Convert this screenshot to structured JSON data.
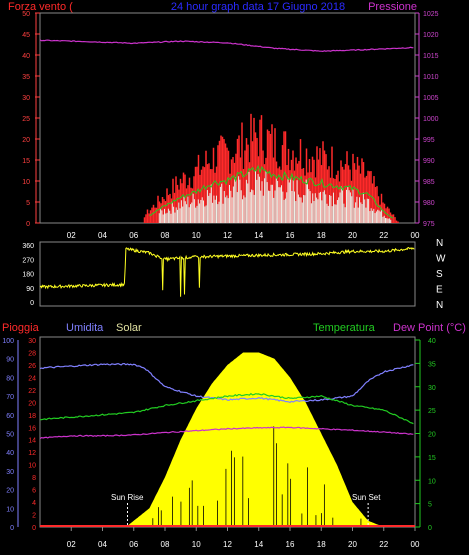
{
  "colors": {
    "background": "#000000",
    "wind_text": "#ff2a2a",
    "title_text": "#2b2bff",
    "pressure": "#cc33cc",
    "wind_axis": "#ff4040",
    "pressure_axis": "#cc44cc",
    "wind_dir": "#ffff22",
    "humidity": "#8080ff",
    "solar": "#ffff00",
    "temperature": "#22cc22",
    "dew_point": "#cc33cc",
    "rain": "#ff2a2a",
    "white": "#ffffff",
    "grid": "#2a7a2a"
  },
  "top": {
    "label_left": "Forza vento (",
    "title": "24 hour graph data  17 Giugno 2018",
    "label_right": "Pressione",
    "wind_ticks": [
      "0",
      "5",
      "10",
      "15",
      "20",
      "25",
      "30",
      "35",
      "40",
      "45",
      "50"
    ],
    "pressure_ticks": [
      "975",
      "980",
      "985",
      "990",
      "995",
      "1000",
      "1005",
      "1010",
      "1015",
      "1020",
      "1025"
    ]
  },
  "mid": {
    "dir_ticks": [
      "0",
      "90",
      "180",
      "270",
      "360"
    ],
    "compass": [
      "N",
      "W",
      "S",
      "E",
      "N"
    ]
  },
  "bottom": {
    "label_rain": "Pioggia",
    "label_humidity": "Umidita",
    "label_solar": "Solar",
    "label_temp": "Temperatura",
    "label_dew": "Dew Point (°C)",
    "hum_ticks": [
      "0",
      "10",
      "20",
      "30",
      "40",
      "50",
      "60",
      "70",
      "80",
      "90",
      "100"
    ],
    "rain_ticks": [
      "0",
      "2",
      "4",
      "6",
      "8",
      "10",
      "12",
      "14",
      "16",
      "18",
      "20",
      "22",
      "24",
      "26",
      "28",
      "30"
    ],
    "temp_ticks": [
      "0",
      "5",
      "10",
      "15",
      "20",
      "25",
      "30",
      "35",
      "40"
    ],
    "sunrise": "Sun Rise",
    "sunset": "Sun Set"
  },
  "hour_labels": [
    "02",
    "04",
    "06",
    "08",
    "10",
    "12",
    "14",
    "16",
    "18",
    "20",
    "22",
    "00"
  ],
  "chart_data": [
    {
      "type": "line",
      "title": "24 hour graph data  17 Giugno 2018",
      "series": [
        {
          "name": "Forza vento (",
          "x": [
            6.5,
            8,
            9,
            10,
            11,
            12,
            13,
            14,
            15,
            16,
            17,
            18,
            19,
            20,
            21,
            22,
            23
          ],
          "values": [
            1,
            6,
            9,
            11,
            14,
            15,
            17,
            19,
            17,
            16,
            15,
            14,
            13,
            12,
            10,
            4,
            0
          ]
        },
        {
          "name": "Pressione",
          "x": [
            0,
            3,
            6,
            9,
            12,
            15,
            18,
            21,
            24
          ],
          "values": [
            1018.5,
            1018.2,
            1017.8,
            1018.3,
            1017.9,
            1016.6,
            1015.9,
            1016.3,
            1016.8
          ]
        }
      ],
      "ylim_left": [
        0,
        50
      ],
      "ylim_right": [
        975,
        1025
      ]
    },
    {
      "type": "line",
      "series": [
        {
          "name": "Direction",
          "x": [
            0,
            5.4,
            5.5,
            7,
            8,
            10,
            12,
            14,
            16,
            18,
            20,
            22,
            24
          ],
          "values": [
            95,
            110,
            335,
            310,
            270,
            285,
            290,
            295,
            300,
            305,
            320,
            320,
            340
          ]
        }
      ],
      "ylim": [
        0,
        360
      ]
    },
    {
      "type": "line",
      "series": [
        {
          "name": "Umidita",
          "x": [
            0,
            2,
            4,
            6,
            6.7,
            8,
            10,
            12,
            14,
            16,
            18,
            20,
            21,
            22,
            24
          ],
          "values": [
            85,
            86,
            87,
            87,
            85,
            75,
            70,
            68,
            69,
            67,
            68,
            70,
            78,
            83,
            87
          ]
        },
        {
          "name": "Temperatura",
          "x": [
            0,
            2,
            4,
            6,
            8,
            10,
            12,
            14,
            16,
            18,
            19,
            20,
            22,
            24
          ],
          "values": [
            23,
            23.5,
            24,
            24.5,
            26,
            27,
            28,
            28.5,
            27.5,
            28,
            27,
            26,
            25,
            22
          ]
        },
        {
          "name": "Dew Point (°C)",
          "x": [
            0,
            2,
            4,
            6,
            8,
            10,
            12,
            14,
            16,
            18,
            20,
            22,
            24
          ],
          "values": [
            19,
            19.5,
            19.5,
            19.7,
            20.2,
            20.6,
            21,
            21.2,
            21.3,
            21,
            20.7,
            20.3,
            19.8
          ]
        },
        {
          "name": "Solar",
          "x": [
            5.5,
            6,
            7,
            8,
            9,
            10,
            11,
            12,
            13,
            14,
            15,
            16,
            17,
            18,
            19,
            20,
            21,
            22
          ],
          "values": [
            0,
            1,
            3,
            8,
            14,
            19,
            23,
            26,
            28,
            28,
            27,
            24,
            20,
            15,
            10,
            4,
            1,
            0
          ]
        }
      ],
      "ylim_humidity": [
        0,
        100
      ],
      "ylim_rain": [
        0,
        30
      ],
      "ylim_temp": [
        0,
        40
      ]
    }
  ]
}
